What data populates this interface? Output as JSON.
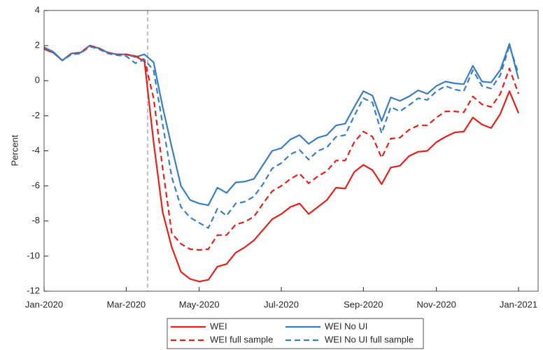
{
  "chart_data": {
    "type": "line",
    "ylabel": "Percent",
    "categories": [
      "Jan-2020",
      null,
      null,
      null,
      null,
      null,
      null,
      null,
      null,
      "Mar-2020",
      null,
      null,
      null,
      null,
      null,
      null,
      null,
      "May-2020",
      null,
      null,
      null,
      null,
      null,
      null,
      null,
      null,
      "Jul-2020",
      null,
      null,
      null,
      null,
      null,
      null,
      null,
      null,
      "Sep-2020",
      null,
      null,
      null,
      null,
      null,
      null,
      null,
      "Nov-2020",
      null,
      null,
      null,
      null,
      null,
      null,
      null,
      null,
      "Jan-2021"
    ],
    "ylim": [
      -12,
      4
    ],
    "yticks": [
      -12,
      -10,
      -8,
      -6,
      -4,
      -2,
      0,
      2,
      4
    ],
    "grid": false,
    "series": [
      {
        "name": "WEI",
        "color": "#e3211c",
        "dashed": false,
        "values": [
          1.8,
          1.6,
          1.15,
          1.55,
          1.6,
          2.0,
          1.85,
          1.6,
          1.5,
          1.5,
          1.4,
          1.1,
          -3.5,
          -7.5,
          -9.5,
          -10.9,
          -11.3,
          -11.45,
          -11.35,
          -10.6,
          -10.45,
          -9.8,
          -9.5,
          -9.1,
          -8.5,
          -7.9,
          -7.6,
          -7.2,
          -7.0,
          -7.6,
          -7.2,
          -6.8,
          -6.1,
          -6.15,
          -5.2,
          -4.8,
          -5.1,
          -5.9,
          -4.95,
          -4.85,
          -4.3,
          -4.05,
          -4.0,
          -3.5,
          -3.2,
          -2.95,
          -2.9,
          -2.1,
          -2.5,
          -2.7,
          -1.9,
          -0.6,
          -1.85
        ]
      },
      {
        "name": "WEI No UI",
        "color": "#3b7dbf",
        "dashed": false,
        "values": [
          1.9,
          1.65,
          1.15,
          1.55,
          1.6,
          2.0,
          1.85,
          1.6,
          1.5,
          1.5,
          1.35,
          1.5,
          1.05,
          -1.5,
          -3.8,
          -6.0,
          -6.8,
          -7.0,
          -7.1,
          -6.1,
          -6.4,
          -5.8,
          -5.75,
          -5.6,
          -4.8,
          -4.0,
          -3.85,
          -3.35,
          -3.1,
          -3.6,
          -3.25,
          -3.1,
          -2.55,
          -2.45,
          -1.5,
          -0.6,
          -0.85,
          -2.3,
          -0.95,
          -1.15,
          -0.9,
          -0.55,
          -0.75,
          -0.3,
          -0.05,
          -0.15,
          -0.2,
          0.85,
          -0.05,
          -0.1,
          0.6,
          2.1,
          0.1
        ]
      },
      {
        "name": "WEI full sample",
        "color": "#e3211c",
        "dashed": true,
        "values": [
          1.85,
          1.6,
          1.15,
          1.55,
          1.6,
          2.0,
          1.85,
          1.6,
          1.5,
          1.5,
          1.4,
          1.2,
          -1.0,
          -5.0,
          -8.7,
          -9.3,
          -9.6,
          -9.65,
          -9.6,
          -8.8,
          -8.8,
          -8.2,
          -8.05,
          -7.75,
          -7.0,
          -6.3,
          -6.0,
          -5.6,
          -5.3,
          -5.85,
          -5.45,
          -5.15,
          -4.55,
          -4.55,
          -3.5,
          -2.9,
          -3.2,
          -4.4,
          -3.3,
          -3.25,
          -2.8,
          -2.55,
          -2.55,
          -2.1,
          -1.75,
          -1.75,
          -1.8,
          -0.9,
          -1.35,
          -1.5,
          -0.75,
          0.7,
          -0.75
        ]
      },
      {
        "name": "WEI No UI full sample",
        "color": "#3b7dbf",
        "dashed": true,
        "values": [
          1.9,
          1.6,
          1.15,
          1.5,
          1.55,
          1.95,
          1.8,
          1.55,
          1.45,
          1.4,
          1.0,
          1.2,
          0.6,
          -2.5,
          -5.5,
          -7.2,
          -7.8,
          -8.1,
          -8.4,
          -7.3,
          -7.7,
          -7.0,
          -6.9,
          -6.6,
          -5.9,
          -5.0,
          -4.7,
          -4.2,
          -3.95,
          -4.5,
          -4.0,
          -3.8,
          -3.2,
          -3.1,
          -2.0,
          -1.0,
          -1.25,
          -3.0,
          -1.5,
          -1.75,
          -1.4,
          -1.0,
          -1.1,
          -0.6,
          -0.3,
          -0.5,
          -0.6,
          0.6,
          -0.3,
          -0.45,
          0.3,
          2.0,
          0.4
        ]
      }
    ]
  }
}
